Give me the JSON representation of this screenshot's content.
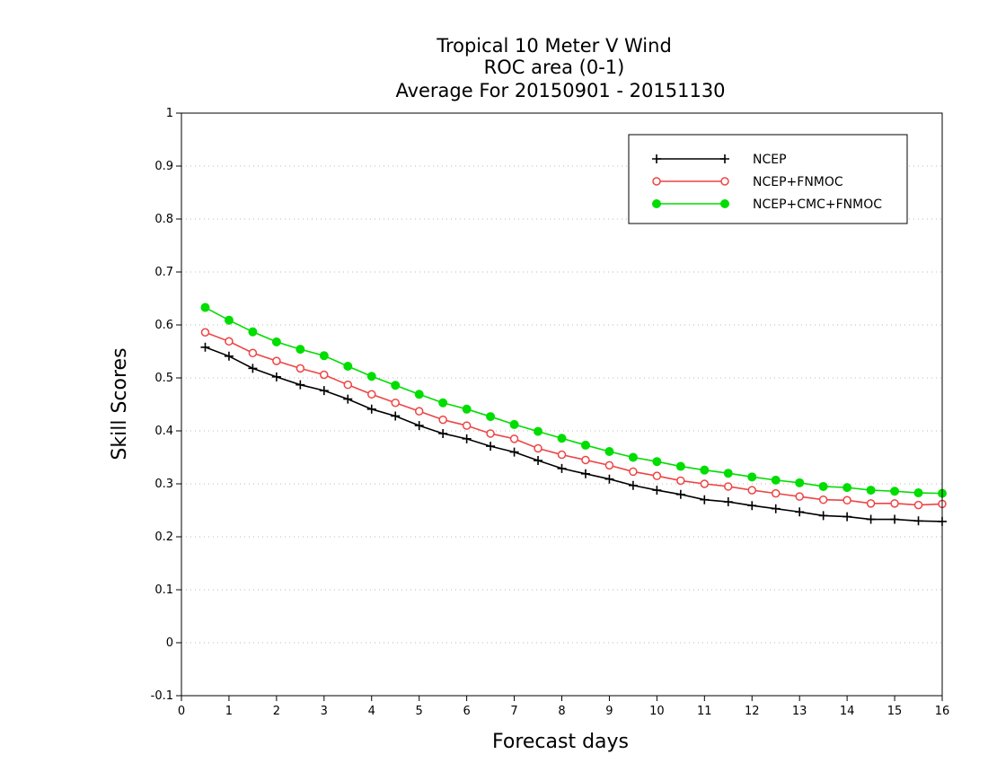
{
  "chart_data": {
    "type": "line",
    "title_lines": [
      "Tropical 10 Meter V Wind",
      "ROC area (0-1)",
      "Average For 20150901 - 20151130"
    ],
    "xlabel": "Forecast days",
    "ylabel": "Skill Scores",
    "xlim": [
      0,
      16
    ],
    "ylim": [
      -0.1,
      1
    ],
    "x_ticks": [
      0,
      1,
      2,
      3,
      4,
      5,
      6,
      7,
      8,
      9,
      10,
      11,
      12,
      13,
      14,
      15,
      16
    ],
    "x_tick_labels": [
      "0",
      "1",
      "2",
      "3",
      "4",
      "5",
      "6",
      "7",
      "8",
      "9",
      "10",
      "11",
      "12",
      "13",
      "14",
      "15",
      "16"
    ],
    "y_ticks": [
      -0.1,
      0,
      0.1,
      0.2,
      0.3,
      0.4,
      0.5,
      0.6,
      0.7,
      0.8,
      0.9,
      1
    ],
    "y_tick_labels": [
      "-0.1",
      "0",
      "0.1",
      "0.2",
      "0.3",
      "0.4",
      "0.5",
      "0.6",
      "0.7",
      "0.8",
      "0.9",
      "1"
    ],
    "grid": true,
    "legend_position": "top-right",
    "x": [
      0.5,
      1,
      1.5,
      2,
      2.5,
      3,
      3.5,
      4,
      4.5,
      5,
      5.5,
      6,
      6.5,
      7,
      7.5,
      8,
      8.5,
      9,
      9.5,
      10,
      10.5,
      11,
      11.5,
      12,
      12.5,
      13,
      13.5,
      14,
      14.5,
      15,
      15.5,
      16
    ],
    "series": [
      {
        "name": "NCEP",
        "color": "#000000",
        "marker": "plus",
        "values": [
          0.558,
          0.541,
          0.518,
          0.502,
          0.487,
          0.476,
          0.46,
          0.441,
          0.428,
          0.41,
          0.395,
          0.385,
          0.371,
          0.36,
          0.344,
          0.329,
          0.319,
          0.309,
          0.297,
          0.288,
          0.28,
          0.27,
          0.266,
          0.259,
          0.253,
          0.247,
          0.24,
          0.238,
          0.233,
          0.233,
          0.23,
          0.229
        ]
      },
      {
        "name": "NCEP+FNMOC",
        "color": "#ee4444",
        "marker": "open-circle",
        "values": [
          0.586,
          0.569,
          0.547,
          0.532,
          0.518,
          0.506,
          0.487,
          0.469,
          0.453,
          0.437,
          0.421,
          0.41,
          0.395,
          0.385,
          0.367,
          0.355,
          0.345,
          0.335,
          0.323,
          0.315,
          0.306,
          0.3,
          0.295,
          0.288,
          0.282,
          0.276,
          0.27,
          0.269,
          0.263,
          0.263,
          0.26,
          0.262
        ]
      },
      {
        "name": "NCEP+CMC+FNMOC",
        "color": "#00dd00",
        "marker": "filled-circle",
        "values": [
          0.633,
          0.609,
          0.587,
          0.568,
          0.554,
          0.542,
          0.522,
          0.503,
          0.486,
          0.469,
          0.453,
          0.441,
          0.427,
          0.412,
          0.399,
          0.386,
          0.373,
          0.361,
          0.35,
          0.342,
          0.333,
          0.326,
          0.32,
          0.313,
          0.307,
          0.302,
          0.295,
          0.293,
          0.288,
          0.286,
          0.283,
          0.282
        ]
      }
    ]
  }
}
